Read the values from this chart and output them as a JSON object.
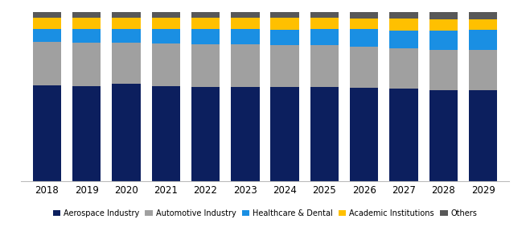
{
  "years": [
    2018,
    2019,
    2020,
    2021,
    2022,
    2023,
    2024,
    2025,
    2026,
    2027,
    2028,
    2029
  ],
  "aerospace": [
    0.565,
    0.56,
    0.575,
    0.56,
    0.555,
    0.555,
    0.555,
    0.555,
    0.55,
    0.545,
    0.54,
    0.54
  ],
  "automotive": [
    0.26,
    0.26,
    0.245,
    0.255,
    0.255,
    0.255,
    0.25,
    0.25,
    0.245,
    0.24,
    0.235,
    0.235
  ],
  "healthcare": [
    0.075,
    0.08,
    0.08,
    0.085,
    0.09,
    0.09,
    0.09,
    0.095,
    0.105,
    0.105,
    0.115,
    0.12
  ],
  "academic": [
    0.065,
    0.065,
    0.065,
    0.065,
    0.067,
    0.065,
    0.07,
    0.065,
    0.06,
    0.072,
    0.068,
    0.062
  ],
  "others": [
    0.035,
    0.035,
    0.035,
    0.035,
    0.033,
    0.035,
    0.035,
    0.035,
    0.04,
    0.038,
    0.042,
    0.043
  ],
  "colors": {
    "aerospace": "#0c1f5e",
    "automotive": "#a0a0a0",
    "healthcare": "#1a8fe3",
    "academic": "#ffc000",
    "others": "#585858"
  },
  "legend_labels": [
    "Aerospace Industry",
    "Automotive Industry",
    "Healthcare & Dental",
    "Academic Institutions",
    "Others"
  ],
  "bar_width": 0.72,
  "figsize": [
    6.59,
    3.03
  ],
  "dpi": 100
}
